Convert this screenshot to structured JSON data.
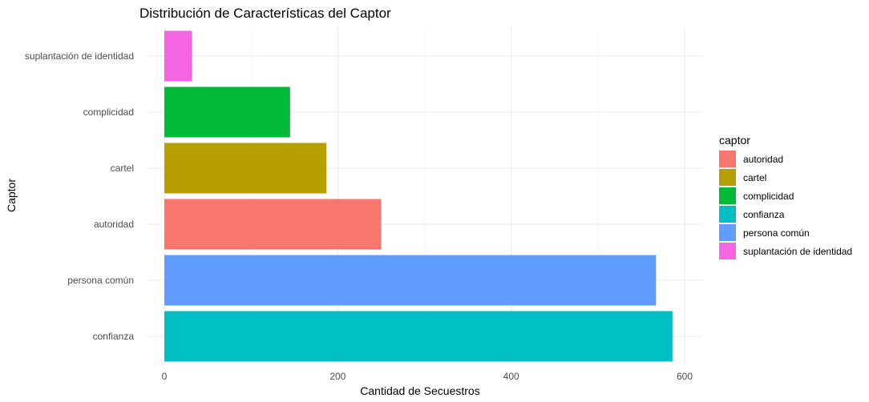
{
  "chart_data": {
    "type": "bar",
    "orientation": "horizontal",
    "title": "Distribución de Características del Captor",
    "xlabel": "Cantidad de Secuestros",
    "ylabel": "Captor",
    "categories": [
      "suplantación de identidad",
      "complicidad",
      "cartel",
      "autoridad",
      "persona común",
      "confianza"
    ],
    "values": [
      32,
      145,
      187,
      250,
      567,
      586
    ],
    "colors": [
      "#F564E3",
      "#00BA38",
      "#B79F00",
      "#F8766D",
      "#619CFF",
      "#00BFC4"
    ],
    "xlim": [
      0,
      610
    ],
    "xticks": [
      0,
      200,
      400,
      600
    ],
    "grid": true,
    "legend": {
      "title": "captor",
      "position": "right",
      "items": [
        {
          "label": "autoridad",
          "color": "#F8766D"
        },
        {
          "label": "cartel",
          "color": "#B79F00"
        },
        {
          "label": "complicidad",
          "color": "#00BA38"
        },
        {
          "label": "confianza",
          "color": "#00BFC4"
        },
        {
          "label": "persona común",
          "color": "#619CFF"
        },
        {
          "label": "suplantación de identidad",
          "color": "#F564E3"
        }
      ]
    }
  }
}
